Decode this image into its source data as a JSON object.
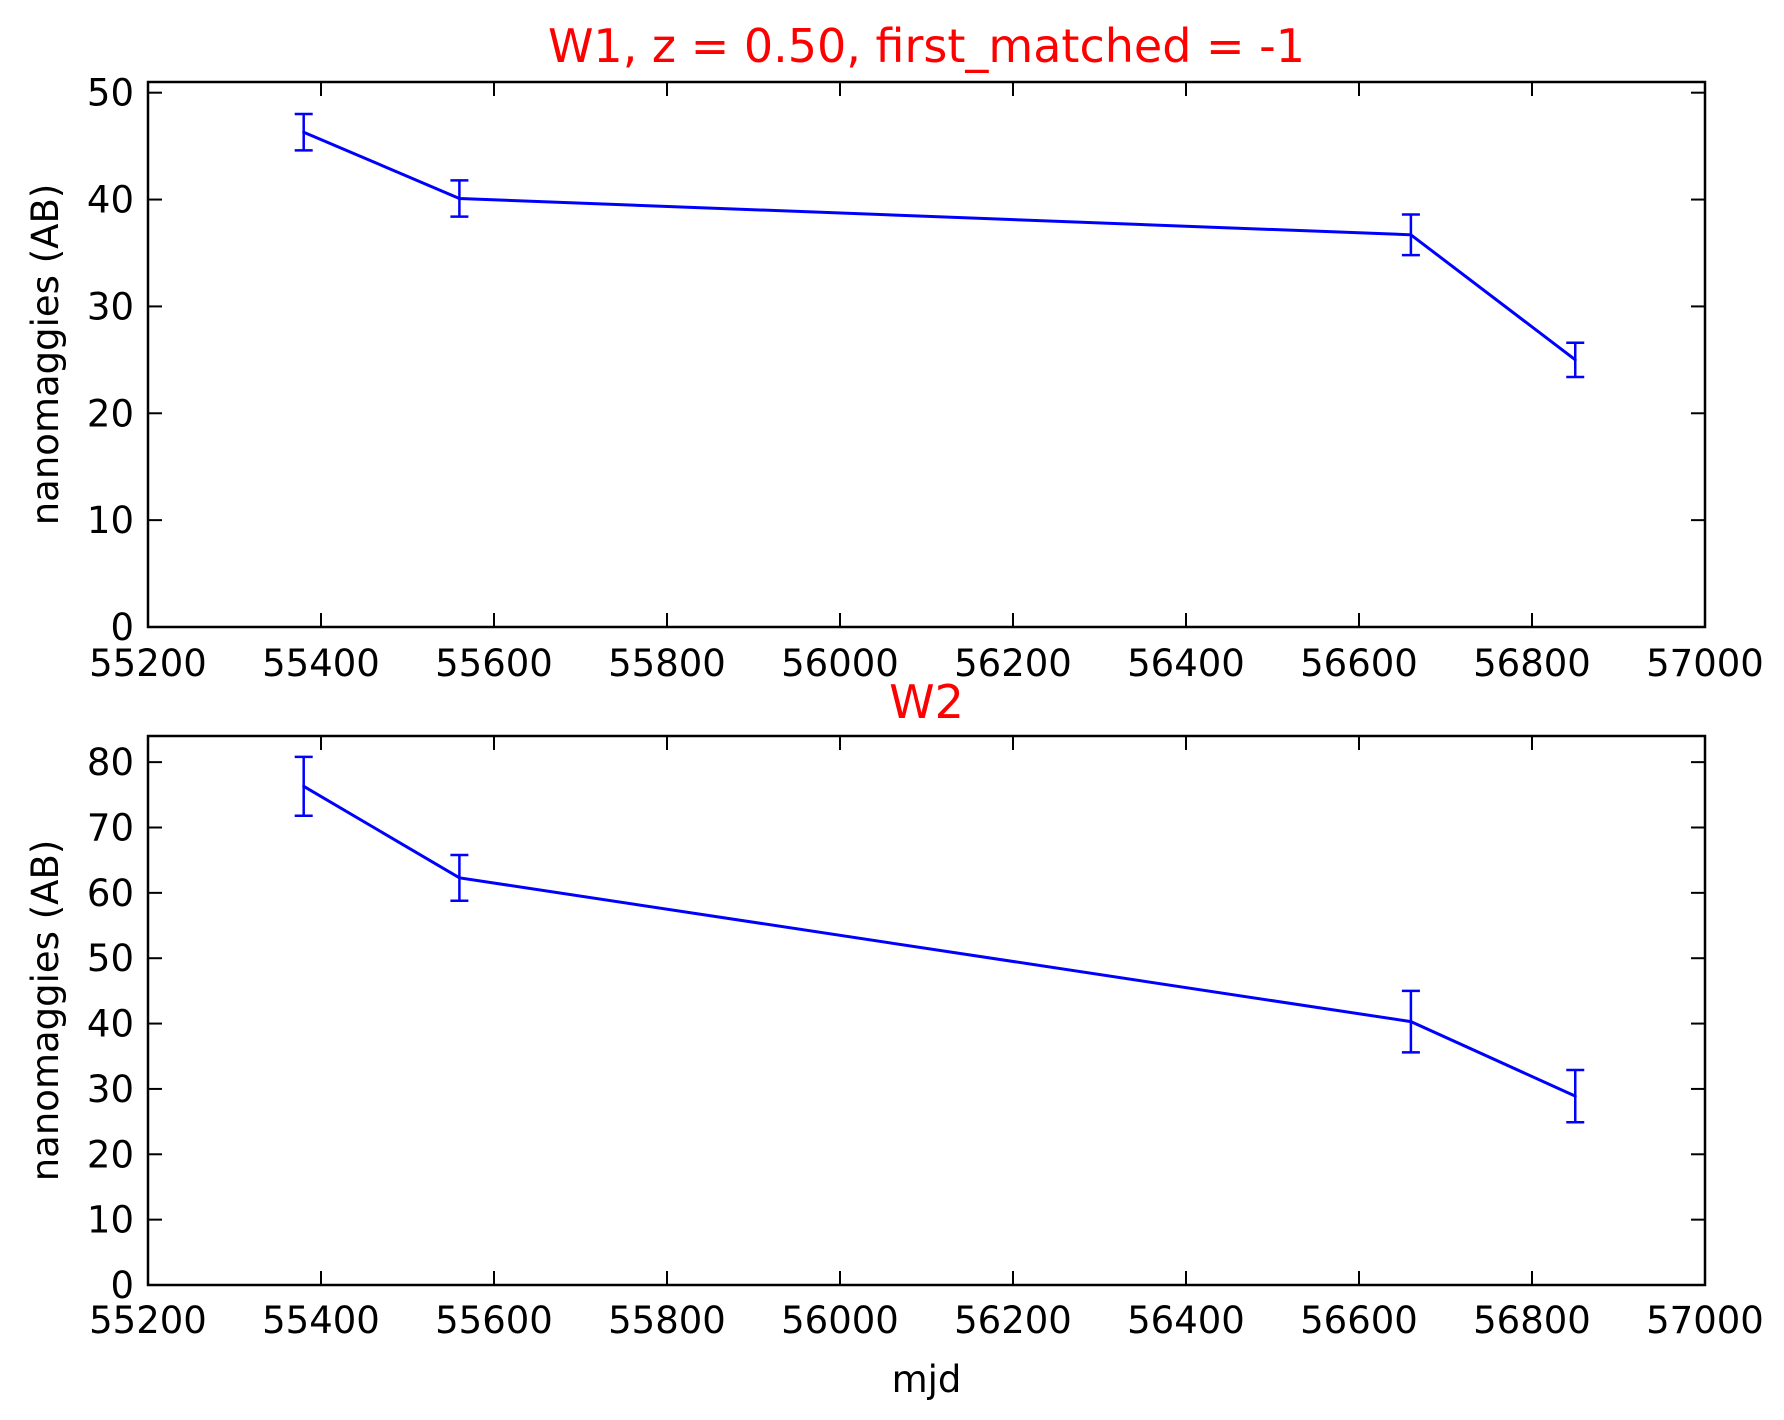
{
  "figure": {
    "colors": {
      "series": "#0000ff",
      "title": "#ff0000",
      "axes": "#000000",
      "background": "#ffffff"
    }
  },
  "chart_data": [
    {
      "type": "line",
      "title": "W1, z = 0.50, first_matched = -1",
      "xlabel": "",
      "ylabel": "nanomaggies (AB)",
      "xlim": [
        55200,
        57000
      ],
      "ylim": [
        0,
        51
      ],
      "xticks": [
        55200,
        55400,
        55600,
        55800,
        56000,
        56200,
        56400,
        56600,
        56800,
        57000
      ],
      "yticks": [
        0,
        10,
        20,
        30,
        40,
        50
      ],
      "grid": false,
      "series": [
        {
          "x": [
            55380,
            55560,
            56660,
            56850
          ],
          "y": [
            46.3,
            40.1,
            36.7,
            25.0
          ],
          "yerr": [
            1.7,
            1.7,
            1.9,
            1.6
          ]
        }
      ]
    },
    {
      "type": "line",
      "title": "W2",
      "xlabel": "mjd",
      "ylabel": "nanomaggies (AB)",
      "xlim": [
        55200,
        57000
      ],
      "ylim": [
        0,
        84
      ],
      "xticks": [
        55200,
        55400,
        55600,
        55800,
        56000,
        56200,
        56400,
        56600,
        56800,
        57000
      ],
      "yticks": [
        0,
        10,
        20,
        30,
        40,
        50,
        60,
        70,
        80
      ],
      "grid": false,
      "series": [
        {
          "x": [
            55380,
            55560,
            56660,
            56850
          ],
          "y": [
            76.3,
            62.3,
            40.3,
            28.9
          ],
          "yerr": [
            4.5,
            3.5,
            4.7,
            4.0
          ]
        }
      ]
    }
  ]
}
